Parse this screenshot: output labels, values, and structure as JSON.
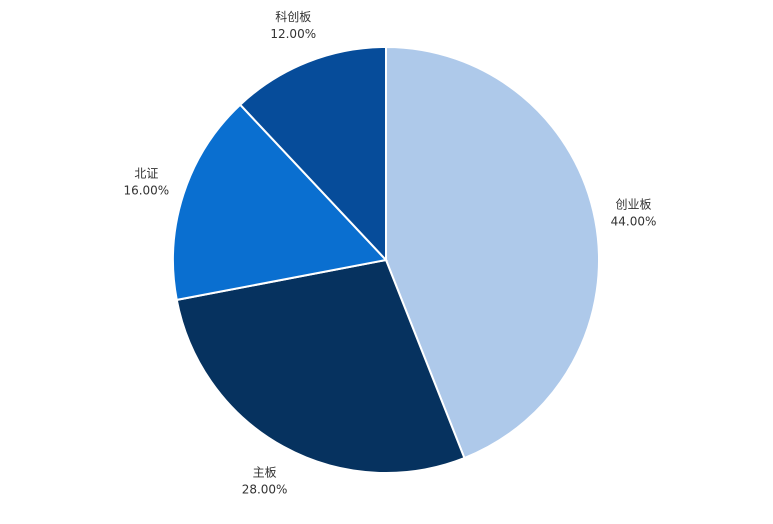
{
  "chart_data": {
    "type": "pie",
    "categories": [
      "创业板",
      "主板",
      "北证",
      "科创板"
    ],
    "values": [
      44,
      28,
      16,
      12
    ],
    "value_labels": [
      "44.00%",
      "28.00%",
      "16.00%",
      "12.00%"
    ],
    "colors": [
      "#aec9ea",
      "#06325f",
      "#0a6fd0",
      "#064c9a"
    ]
  }
}
